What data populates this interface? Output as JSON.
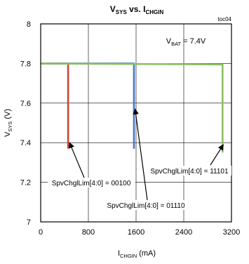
{
  "chart_data": {
    "type": "line",
    "title": {
      "main": "V",
      "main_sub": "SYS",
      "mid": " vs. I",
      "mid_sub": "CHGIN"
    },
    "figure_id": "toc04",
    "condition": {
      "prefix": "V",
      "sub": "BAT",
      "suffix": " = 7.4V"
    },
    "xlabel": {
      "main": "I",
      "sub": "CHGIN",
      "suffix": " (mA)"
    },
    "ylabel": {
      "main": "V",
      "sub": "SYS",
      "suffix": " (V)"
    },
    "xlim": [
      0,
      3200
    ],
    "ylim": [
      7.0,
      8.0
    ],
    "xticks": [
      "0",
      "800",
      "1600",
      "2400",
      "3200"
    ],
    "yticks": [
      "7",
      "7.2",
      "7.4",
      "7.6",
      "7.8",
      "8"
    ],
    "grid": true,
    "series": [
      {
        "color": "#c9463d",
        "x": [
          0,
          460,
          460
        ],
        "y": [
          7.8,
          7.8,
          7.37
        ]
      },
      {
        "color": "#4a78c0",
        "x": [
          0,
          1565,
          1565
        ],
        "y": [
          7.8,
          7.8,
          7.37
        ]
      },
      {
        "color": "#8cc062",
        "x": [
          0,
          3050,
          3050
        ],
        "y": [
          7.8,
          7.795,
          7.35
        ]
      }
    ],
    "annotations": [
      {
        "text": "SpvChglLim[4:0] = 00100",
        "arrow_x": 460,
        "arrow_y": 7.4
      },
      {
        "text": "SpvChglLim[4:0] = 01110",
        "arrow_x": 1560,
        "arrow_y": 7.57
      },
      {
        "text": "SpvChglLim[4:0] = 11101",
        "arrow_x": 3040,
        "arrow_y": 7.39
      }
    ]
  }
}
